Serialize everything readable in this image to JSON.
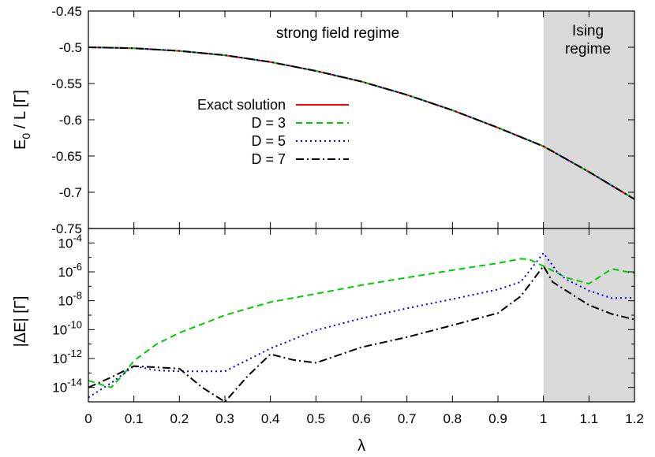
{
  "chart_data": [
    {
      "type": "line",
      "panel": "top",
      "ylabel_main": "E",
      "ylabel_sub": "0",
      "ylabel_rest": " / L  [Γ]",
      "xlim": [
        0,
        1.2
      ],
      "ylim": [
        -0.75,
        -0.45
      ],
      "yticks": [
        "-0.45",
        "-0.5",
        "-0.55",
        "-0.6",
        "-0.65",
        "-0.7",
        "-0.75"
      ],
      "shaded_region": {
        "from": 1.0,
        "to": 1.2,
        "color": "#d9d9d9"
      },
      "annotations": [
        "strong field regime",
        "Ising",
        "regime"
      ],
      "legend_position": "center-left",
      "series": [
        {
          "name": "Exact solution",
          "color": "#ff0000",
          "dash": "solid",
          "x": [
            0,
            0.1,
            0.2,
            0.3,
            0.4,
            0.5,
            0.6,
            0.7,
            0.8,
            0.9,
            1.0,
            1.1,
            1.2
          ],
          "y": [
            -0.5,
            -0.5013,
            -0.505,
            -0.511,
            -0.5203,
            -0.5326,
            -0.5473,
            -0.5656,
            -0.5868,
            -0.611,
            -0.6366,
            -0.6719,
            -0.7096
          ]
        },
        {
          "name": "D = 3",
          "color": "#00cc00",
          "dash": "8,5",
          "x": [
            0,
            0.1,
            0.2,
            0.3,
            0.4,
            0.5,
            0.6,
            0.7,
            0.8,
            0.9,
            1.0,
            1.1,
            1.2
          ],
          "y": [
            -0.5,
            -0.5013,
            -0.505,
            -0.511,
            -0.5203,
            -0.5326,
            -0.5473,
            -0.5656,
            -0.5868,
            -0.611,
            -0.6366,
            -0.6719,
            -0.7096
          ]
        },
        {
          "name": "D = 5",
          "color": "#0000ee",
          "dash": "2,4",
          "x": [
            0,
            0.1,
            0.2,
            0.3,
            0.4,
            0.5,
            0.6,
            0.7,
            0.8,
            0.9,
            1.0,
            1.1,
            1.2
          ],
          "y": [
            -0.5,
            -0.5013,
            -0.505,
            -0.511,
            -0.5203,
            -0.5326,
            -0.5473,
            -0.5656,
            -0.5868,
            -0.611,
            -0.6366,
            -0.6719,
            -0.7096
          ]
        },
        {
          "name": "D = 7",
          "color": "#000000",
          "dash": "10,4,2,4",
          "x": [
            0,
            0.1,
            0.2,
            0.3,
            0.4,
            0.5,
            0.6,
            0.7,
            0.8,
            0.9,
            1.0,
            1.1,
            1.2
          ],
          "y": [
            -0.5,
            -0.5013,
            -0.505,
            -0.511,
            -0.5203,
            -0.5326,
            -0.5473,
            -0.5656,
            -0.5868,
            -0.611,
            -0.6366,
            -0.6719,
            -0.7096
          ]
        }
      ]
    },
    {
      "type": "line",
      "panel": "bottom",
      "ylabel": "|ΔE|  [Γ]",
      "xlabel": "λ",
      "yscale": "log",
      "xlim": [
        0,
        1.2
      ],
      "ylim": [
        1e-15,
        0.001
      ],
      "xticks": [
        "0",
        "0.1",
        "0.2",
        "0.3",
        "0.4",
        "0.5",
        "0.6",
        "0.7",
        "0.8",
        "0.9",
        "1",
        "1.1",
        "1.2"
      ],
      "yticks": [
        {
          "base": "10",
          "exp": "-4"
        },
        {
          "base": "10",
          "exp": "-6"
        },
        {
          "base": "10",
          "exp": "-8"
        },
        {
          "base": "10",
          "exp": "-10"
        },
        {
          "base": "10",
          "exp": "-12"
        },
        {
          "base": "10",
          "exp": "-14"
        }
      ],
      "shaded_region": {
        "from": 1.0,
        "to": 1.2,
        "color": "#d9d9d9"
      },
      "series": [
        {
          "name": "D = 3",
          "color": "#00cc00",
          "dash": "8,5",
          "x": [
            0,
            0.03,
            0.05,
            0.08,
            0.1,
            0.15,
            0.2,
            0.3,
            0.4,
            0.5,
            0.6,
            0.7,
            0.8,
            0.9,
            0.95,
            0.97,
            1.0,
            1.05,
            1.1,
            1.15,
            1.2
          ],
          "y": [
            3e-14,
            1.5e-14,
            1e-14,
            1e-13,
            7e-13,
            1e-11,
            6e-11,
            1e-09,
            8e-09,
            3e-08,
            1.2e-07,
            4e-07,
            1.3e-06,
            4e-06,
            8e-06,
            7e-06,
            2.5e-06,
            4e-07,
            1.5e-07,
            1.6e-06,
            8e-07
          ]
        },
        {
          "name": "D = 5",
          "color": "#0000ee",
          "dash": "2,4",
          "x": [
            0,
            0.05,
            0.1,
            0.15,
            0.2,
            0.3,
            0.35,
            0.4,
            0.5,
            0.6,
            0.7,
            0.8,
            0.9,
            0.95,
            1.0,
            1.03,
            1.05,
            1.1,
            1.15,
            1.2
          ],
          "y": [
            2e-15,
            2e-14,
            3e-13,
            1.5e-13,
            1.3e-13,
            1.3e-13,
            8e-13,
            5e-12,
            9e-11,
            6e-10,
            3e-09,
            1.3e-08,
            6e-08,
            2e-07,
            2e-05,
            1e-06,
            3e-07,
            5e-08,
            1.5e-08,
            1.6e-08
          ]
        },
        {
          "name": "D = 7",
          "color": "#000000",
          "dash": "10,4,2,4",
          "x": [
            0,
            0.05,
            0.1,
            0.2,
            0.25,
            0.3,
            0.35,
            0.4,
            0.45,
            0.5,
            0.6,
            0.7,
            0.8,
            0.9,
            0.95,
            1.0,
            1.02,
            1.05,
            1.1,
            1.15,
            1.2
          ],
          "y": [
            1e-14,
            5e-14,
            3e-13,
            2e-13,
            1e-14,
            1e-15,
            6e-14,
            2e-12,
            8e-13,
            5e-13,
            6e-12,
            3e-11,
            2e-10,
            1.4e-09,
            2e-08,
            2.5e-06,
            2e-07,
            5e-08,
            5e-09,
            1.2e-09,
            5e-10
          ]
        }
      ]
    }
  ]
}
